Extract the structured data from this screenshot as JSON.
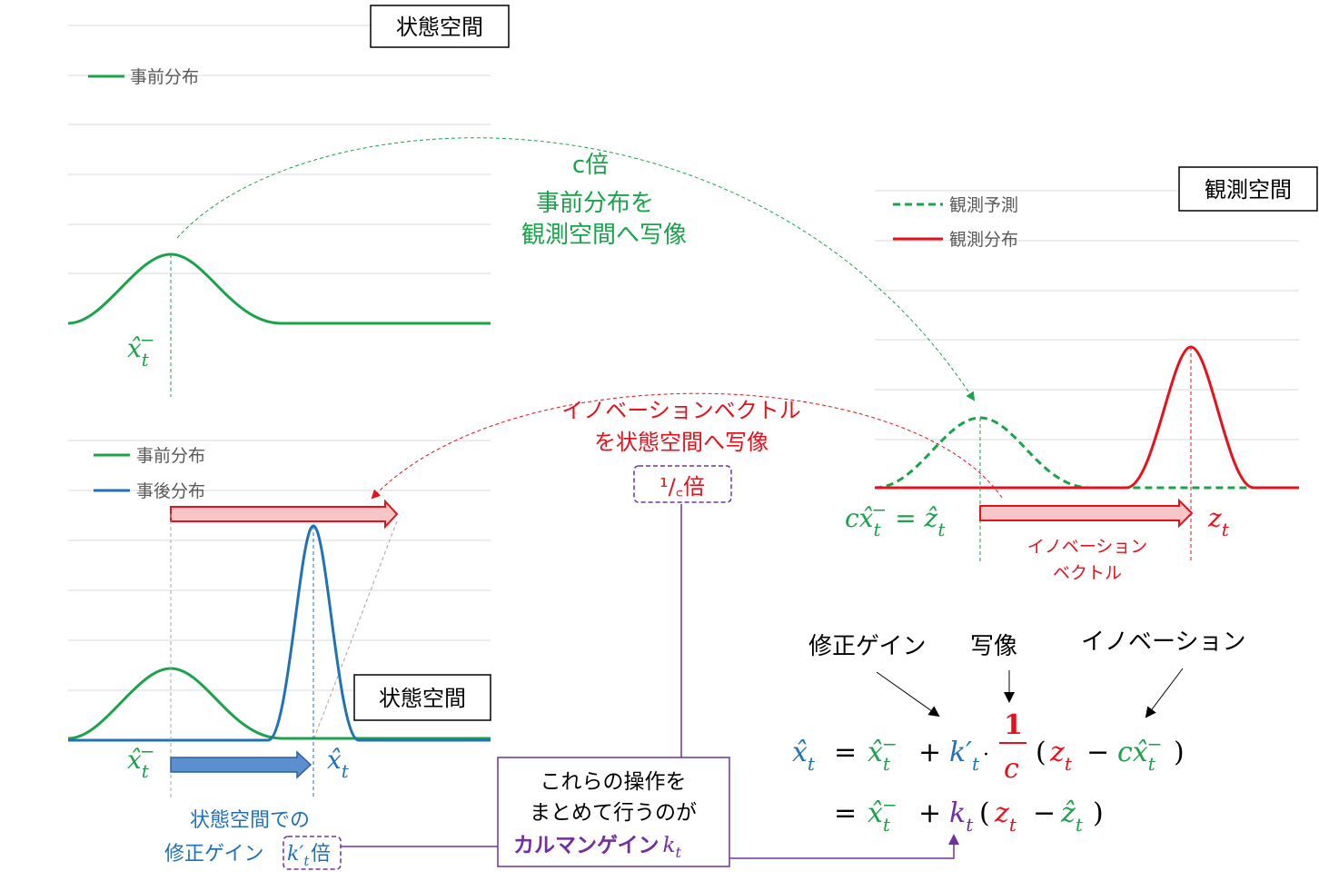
{
  "colors": {
    "green": "#1aa34a",
    "blue": "#1f72b8",
    "red": "#e8101a",
    "purple": "#7030a0",
    "grid": "#d9d9d9",
    "gray_text": "#595959"
  },
  "top_left": {
    "box_label": "状態空間",
    "legend_prior": "事前分布",
    "x_label": "x̂",
    "x_sub": "t",
    "x_sup": "−"
  },
  "mapping": {
    "line1": "c倍",
    "line2": "事前分布を",
    "line3": "観測空間へ写像"
  },
  "top_right": {
    "box_label": "観測空間",
    "legend_predicted": "観測予測",
    "legend_observed": "観測分布",
    "eq_left": "cx̂",
    "eq_mid": " = ẑ",
    "z_label": "z",
    "t_sub": "t",
    "innovation_line1": "イノベーション",
    "innovation_line2": "ベクトル"
  },
  "back_mapping": {
    "line1": "イノベーションベクトル",
    "line2": "を状態空間へ写像",
    "factor": "¹/꜀倍"
  },
  "bottom_left": {
    "box_label": "状態空間",
    "legend_prior": "事前分布",
    "legend_posterior": "事後分布",
    "x_prior": "x̂",
    "x_post": "x̂",
    "gain_line1": "状態空間での",
    "gain_line2": "修正ゲイン",
    "gain_k": "k′",
    "gain_suffix": "倍"
  },
  "kalman_box": {
    "line1": "これらの操作を",
    "line2": "まとめて行うのが",
    "line3": "カルマンゲイン",
    "k": "k"
  },
  "formula": {
    "label_gain": "修正ゲイン",
    "label_map": "写像",
    "label_innov": "イノベーション",
    "one": "1",
    "c": "c"
  }
}
